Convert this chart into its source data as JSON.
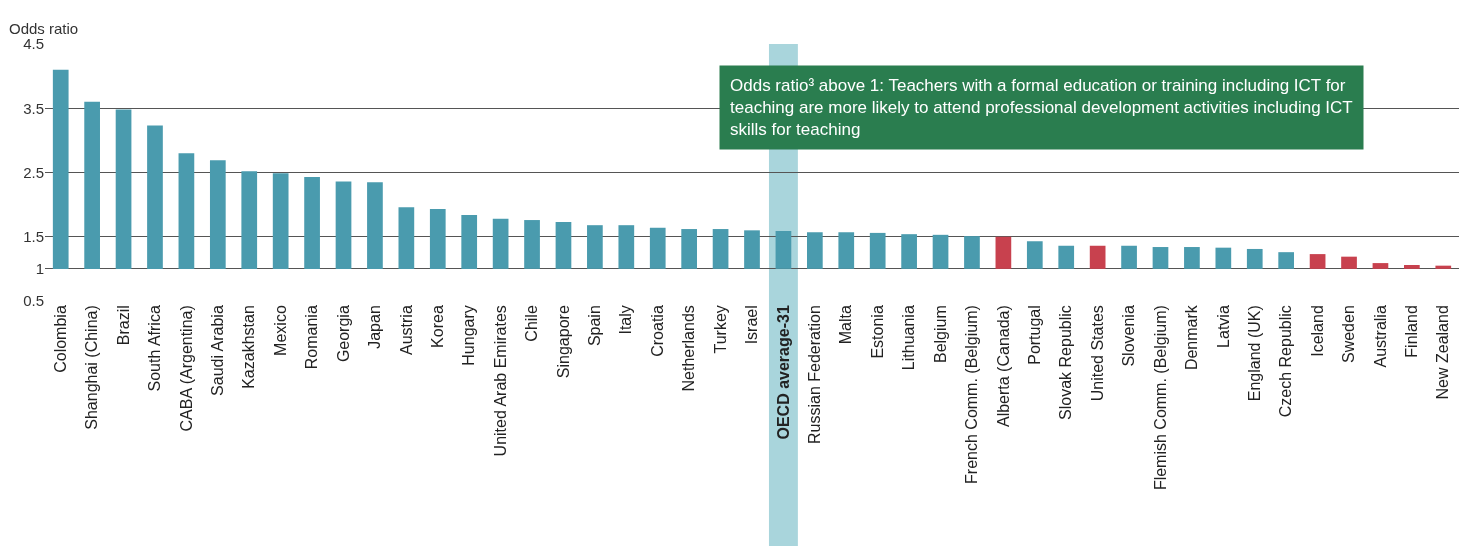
{
  "chart_data": {
    "type": "bar",
    "ylabel": "Odds ratio",
    "categories": [
      "Colombia",
      "Shanghai (China)",
      "Brazil",
      "South Africa",
      "CABA (Argentina)",
      "Saudi Arabia",
      "Kazakhstan",
      "Mexico",
      "Romania",
      "Georgia",
      "Japan",
      "Austria",
      "Korea",
      "Hungary",
      "United Arab Emirates",
      "Chile",
      "Singapore",
      "Spain",
      "Italy",
      "Croatia",
      "Netherlands",
      "Turkey",
      "Israel",
      "OECD average-31",
      "Russian Federation",
      "Malta",
      "Estonia",
      "Lithuania",
      "Belgium",
      "French Comm. (Belgium)",
      "Alberta (Canada)",
      "Portugal",
      "Slovak Republic",
      "United States",
      "Slovenia",
      "Flemish Comm. (Belgium)",
      "Denmark",
      "Latvia",
      "England (UK)",
      "Czech Republic",
      "Iceland",
      "Sweden",
      "Australia",
      "Finland",
      "New Zealand"
    ],
    "base": [
      1,
      1,
      1,
      1,
      1,
      1,
      1,
      1,
      1,
      1,
      1,
      1,
      1,
      1,
      1,
      1,
      1,
      1,
      1,
      1,
      1,
      1,
      1,
      1,
      1,
      1,
      1,
      1,
      1,
      1,
      1,
      1,
      1,
      1,
      1,
      1,
      1,
      1,
      1,
      1,
      1,
      1,
      1,
      1,
      1
    ],
    "values": [
      3.1,
      2.6,
      2.48,
      2.23,
      1.8,
      1.69,
      1.52,
      1.49,
      1.43,
      1.36,
      1.35,
      0.96,
      0.93,
      0.84,
      0.78,
      0.76,
      0.73,
      0.68,
      0.68,
      0.64,
      0.62,
      0.62,
      0.6,
      0.59,
      0.57,
      0.57,
      0.56,
      0.54,
      0.53,
      0.51,
      0.5,
      0.43,
      0.36,
      0.36,
      0.36,
      0.34,
      0.34,
      0.33,
      0.31,
      0.26,
      0.23,
      0.19,
      0.09,
      0.06,
      0.05
    ],
    "colors": [
      "#4a9bae",
      "#4a9bae",
      "#4a9bae",
      "#4a9bae",
      "#4a9bae",
      "#4a9bae",
      "#4a9bae",
      "#4a9bae",
      "#4a9bae",
      "#4a9bae",
      "#4a9bae",
      "#4a9bae",
      "#4a9bae",
      "#4a9bae",
      "#4a9bae",
      "#4a9bae",
      "#4a9bae",
      "#4a9bae",
      "#4a9bae",
      "#4a9bae",
      "#4a9bae",
      "#4a9bae",
      "#4a9bae",
      "#4a9bae",
      "#4a9bae",
      "#4a9bae",
      "#4a9bae",
      "#4a9bae",
      "#4a9bae",
      "#4a9bae",
      "#c8414e",
      "#4a9bae",
      "#4a9bae",
      "#c8414e",
      "#4a9bae",
      "#4a9bae",
      "#4a9bae",
      "#4a9bae",
      "#4a9bae",
      "#4a9bae",
      "#c8414e",
      "#c8414e",
      "#c8414e",
      "#c8414e",
      "#c8414e"
    ],
    "ylim": [
      0.5,
      4.5
    ],
    "yticks": [
      0.5,
      1,
      1.5,
      2.5,
      3.5,
      4.5
    ],
    "grid": "y",
    "bands": [
      {
        "axis": "x",
        "from": "OECD average-31",
        "to": "OECD average-31",
        "color": "#a9d5dc"
      }
    ],
    "annotations": [
      "Odds ratio³ above 1: Teachers with a formal education or training including ICT for\nteaching are more likely to attend professional development activities including ICT\nskills for teaching"
    ]
  }
}
